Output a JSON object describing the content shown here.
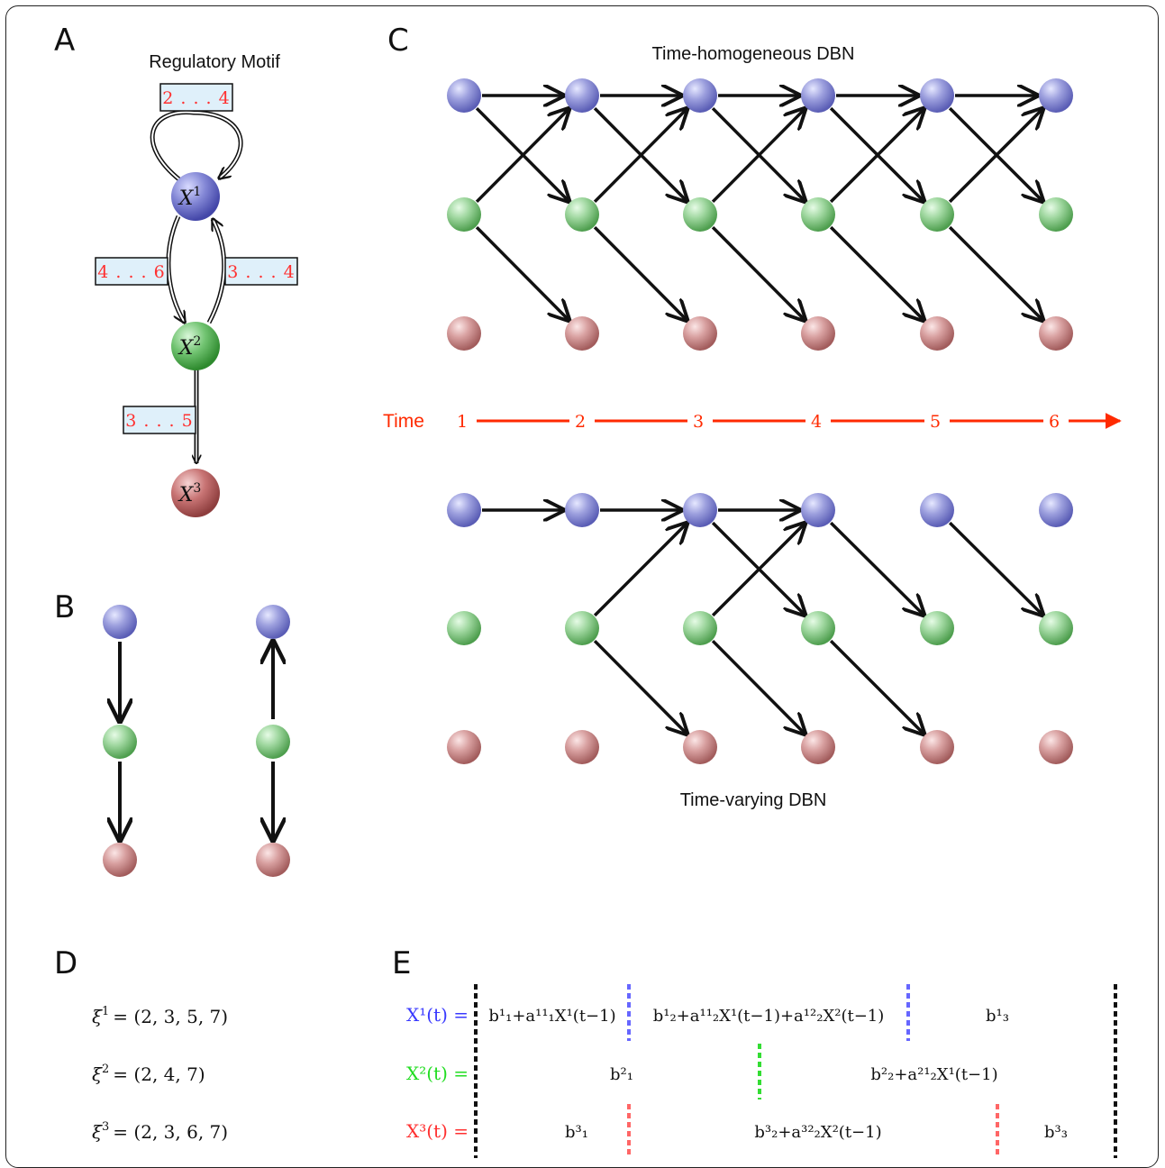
{
  "panels": {
    "a": "A",
    "b": "B",
    "c": "C",
    "d": "D",
    "e": "E"
  },
  "motif": {
    "title": "Regulatory Motif",
    "nodes": [
      {
        "id": "X1",
        "base": "X",
        "sup": "1",
        "color": "#6b6fc8"
      },
      {
        "id": "X2",
        "base": "X",
        "sup": "2",
        "color": "#5cb85c"
      },
      {
        "id": "X3",
        "base": "X",
        "sup": "3",
        "color": "#c06464"
      }
    ],
    "edge_labels": {
      "self_x1": "2 . . . 4",
      "x1_to_x2": "4 . . . 6",
      "x2_to_x1": "3 . . . 4",
      "x2_to_x3": "3 . . . 5"
    }
  },
  "dbn": {
    "top_title": "Time-homogeneous DBN",
    "bottom_title": "Time-varying DBN",
    "time_label": "Time",
    "time_points": [
      "1",
      "2",
      "3",
      "4",
      "5",
      "6"
    ]
  },
  "change_points": {
    "xi1": {
      "sym": "ξ",
      "sup": "1",
      "value": "= (2, 3, 5, 7)"
    },
    "xi2": {
      "sym": "ξ",
      "sup": "2",
      "value": "= (2, 4, 7)"
    },
    "xi3": {
      "sym": "ξ",
      "sup": "3",
      "value": "= (2, 3, 6, 7)"
    }
  },
  "equations": {
    "x1_lhs": "X¹(t) =",
    "x2_lhs": "X²(t) =",
    "x3_lhs": "X³(t) =",
    "x1_seg1": "b¹₁+a¹¹₁X¹(t−1)",
    "x1_seg2": "b¹₂+a¹¹₂X¹(t−1)+a¹²₂X²(t−1)",
    "x1_seg3": "b¹₃",
    "x2_seg1": "b²₁",
    "x2_seg2": "b²₂+a²¹₂X¹(t−1)",
    "x3_seg1": "b³₁",
    "x3_seg2": "b³₂+a³²₂X²(t−1)",
    "x3_seg3": "b³₃"
  },
  "colors": {
    "x1": "#3a3aff",
    "x2": "#22dd22",
    "x3": "#ff3030",
    "label_bg": "#dff0fa",
    "time_axis": "#ff2a00"
  }
}
